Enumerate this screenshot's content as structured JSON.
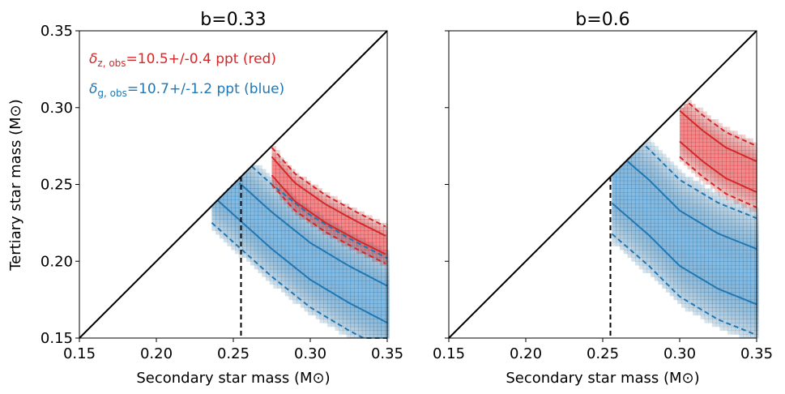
{
  "chart_data": [
    {
      "type": "heatmap",
      "title": "b=0.33",
      "xlabel": "Secondary star mass (M⊙)",
      "ylabel": "Tertiary star mass (M⊙)",
      "xlim": [
        0.15,
        0.35
      ],
      "ylim": [
        0.15,
        0.35
      ],
      "xticks": [
        "0.15",
        "0.20",
        "0.25",
        "0.30",
        "0.35"
      ],
      "yticks": [
        "0.15",
        "0.20",
        "0.25",
        "0.30",
        "0.35"
      ],
      "grid": false,
      "annotations": [
        {
          "symbol": "δ",
          "sub": "z, obs",
          "text": "=10.5+/-0.4 ppt (red)",
          "color": "#d62728"
        },
        {
          "symbol": "δ",
          "sub": "g, obs",
          "text": "=10.7+/-1.2 ppt (blue)",
          "color": "#1f77b4"
        }
      ],
      "reference_lines": {
        "diagonal": [
          [
            0.15,
            0.15
          ],
          [
            0.35,
            0.35
          ]
        ],
        "vertical_x": 0.255
      },
      "series": [
        {
          "color": "#1f77b4",
          "x_start": 0.236,
          "center": [
            [
              0.255,
              0.238
            ],
            [
              0.275,
              0.22
            ],
            [
              0.3,
              0.2
            ],
            [
              0.325,
              0.185
            ],
            [
              0.35,
              0.172
            ]
          ],
          "inner_width": 0.012,
          "outer_width": 0.03
        },
        {
          "color": "#d62728",
          "x_start": 0.275,
          "center": [
            [
              0.275,
              0.262
            ],
            [
              0.29,
              0.245
            ],
            [
              0.31,
              0.231
            ],
            [
              0.33,
              0.22
            ],
            [
              0.35,
              0.21
            ]
          ],
          "inner_width": 0.006,
          "outer_width": 0.012
        }
      ]
    },
    {
      "type": "heatmap",
      "title": "b=0.6",
      "xlabel": "Secondary star mass (M⊙)",
      "ylabel": "",
      "xlim": [
        0.15,
        0.35
      ],
      "ylim": [
        0.15,
        0.35
      ],
      "xticks": [
        "0.15",
        "0.20",
        "0.25",
        "0.30",
        "0.35"
      ],
      "yticks": [
        "",
        "",
        "",
        "",
        ""
      ],
      "grid": false,
      "annotations": [],
      "reference_lines": {
        "diagonal": [
          [
            0.15,
            0.15
          ],
          [
            0.35,
            0.35
          ]
        ],
        "vertical_x": 0.255
      },
      "series": [
        {
          "color": "#1f77b4",
          "x_start": 0.256,
          "center": [
            [
              0.265,
              0.248
            ],
            [
              0.28,
              0.235
            ],
            [
              0.3,
              0.215
            ],
            [
              0.325,
              0.2
            ],
            [
              0.35,
              0.19
            ]
          ],
          "inner_width": 0.018,
          "outer_width": 0.038
        },
        {
          "color": "#d62728",
          "x_start": 0.3,
          "center": [
            [
              0.3,
              0.288
            ],
            [
              0.315,
              0.275
            ],
            [
              0.33,
              0.264
            ],
            [
              0.35,
              0.255
            ]
          ],
          "inner_width": 0.01,
          "outer_width": 0.02
        }
      ]
    }
  ]
}
